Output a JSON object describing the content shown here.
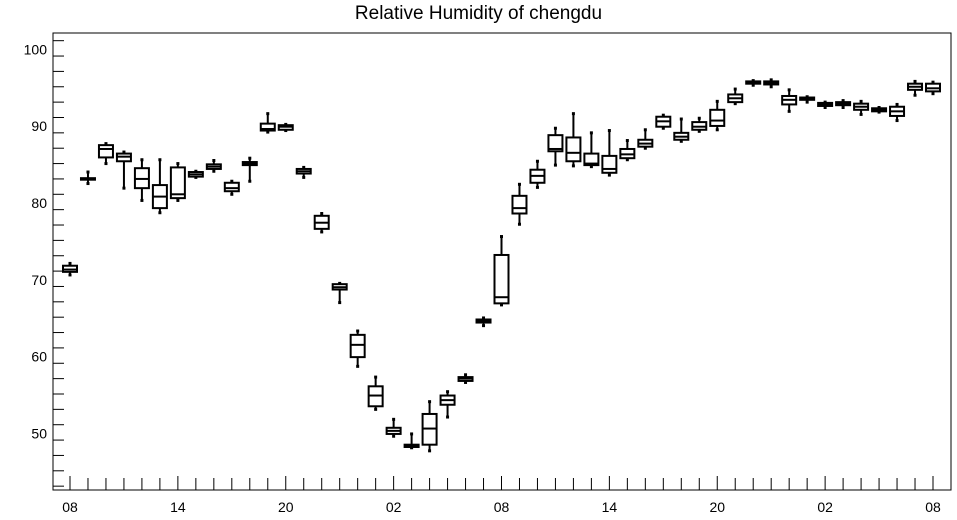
{
  "chart_data": {
    "type": "box",
    "title": "Relative Humidity of chengdu",
    "xlabel": "",
    "ylabel": "",
    "ylim": [
      42.5,
      102
    ],
    "y_ticks": [
      50,
      60,
      70,
      80,
      90,
      100
    ],
    "x_tick_labels": [
      "08",
      "14",
      "20",
      "02",
      "08",
      "14",
      "20",
      "02",
      "08"
    ],
    "x_time_hours": [
      0,
      6,
      12,
      18,
      24,
      30,
      36,
      42,
      48
    ],
    "grid": false,
    "boxes": [
      {
        "t": 0,
        "min": 70.5,
        "q1": 70.9,
        "median": 71.2,
        "q3": 71.7,
        "max": 72.0
      },
      {
        "t": 1,
        "min": 82.4,
        "q1": 82.9,
        "median": 83.0,
        "q3": 83.1,
        "max": 83.9
      },
      {
        "t": 2,
        "min": 85.0,
        "q1": 85.8,
        "median": 86.9,
        "q3": 87.4,
        "max": 87.6
      },
      {
        "t": 3,
        "min": 81.8,
        "q1": 85.3,
        "median": 85.9,
        "q3": 86.3,
        "max": 86.5
      },
      {
        "t": 4,
        "min": 80.2,
        "q1": 81.8,
        "median": 83.0,
        "q3": 84.4,
        "max": 85.5
      },
      {
        "t": 5,
        "min": 78.6,
        "q1": 79.2,
        "median": 80.7,
        "q3": 82.2,
        "max": 85.5
      },
      {
        "t": 6,
        "min": 80.2,
        "q1": 80.5,
        "median": 81.0,
        "q3": 84.5,
        "max": 85.0
      },
      {
        "t": 7,
        "min": 83.2,
        "q1": 83.3,
        "median": 83.6,
        "q3": 83.9,
        "max": 84.0
      },
      {
        "t": 8,
        "min": 84.0,
        "q1": 84.3,
        "median": 84.6,
        "q3": 84.9,
        "max": 85.4
      },
      {
        "t": 9,
        "min": 81.0,
        "q1": 81.4,
        "median": 81.8,
        "q3": 82.5,
        "max": 82.7
      },
      {
        "t": 10,
        "min": 82.7,
        "q1": 84.8,
        "median": 85.0,
        "q3": 85.2,
        "max": 85.7
      },
      {
        "t": 11,
        "min": 89.1,
        "q1": 89.3,
        "median": 89.5,
        "q3": 90.2,
        "max": 91.5
      },
      {
        "t": 12,
        "min": 89.3,
        "q1": 89.4,
        "median": 89.8,
        "q3": 90.0,
        "max": 90.1
      },
      {
        "t": 13,
        "min": 83.2,
        "q1": 83.7,
        "median": 84.0,
        "q3": 84.3,
        "max": 84.5
      },
      {
        "t": 14,
        "min": 76.1,
        "q1": 76.5,
        "median": 77.3,
        "q3": 78.2,
        "max": 78.5
      },
      {
        "t": 15,
        "min": 66.9,
        "q1": 68.6,
        "median": 68.9,
        "q3": 69.3,
        "max": 69.4
      },
      {
        "t": 16,
        "min": 58.6,
        "q1": 59.8,
        "median": 61.4,
        "q3": 62.7,
        "max": 63.2
      },
      {
        "t": 17,
        "min": 53.0,
        "q1": 53.4,
        "median": 54.8,
        "q3": 56.0,
        "max": 57.2
      },
      {
        "t": 18,
        "min": 49.5,
        "q1": 49.8,
        "median": 50.2,
        "q3": 50.6,
        "max": 51.7
      },
      {
        "t": 19,
        "min": 48.0,
        "q1": 48.1,
        "median": 48.2,
        "q3": 48.4,
        "max": 49.8
      },
      {
        "t": 20,
        "min": 47.6,
        "q1": 48.4,
        "median": 50.5,
        "q3": 52.4,
        "max": 54.0
      },
      {
        "t": 21,
        "min": 52.0,
        "q1": 53.6,
        "median": 54.2,
        "q3": 54.8,
        "max": 55.3
      },
      {
        "t": 22,
        "min": 56.5,
        "q1": 56.7,
        "median": 57.0,
        "q3": 57.2,
        "max": 57.5
      },
      {
        "t": 23,
        "min": 63.9,
        "q1": 64.3,
        "median": 64.5,
        "q3": 64.7,
        "max": 64.9
      },
      {
        "t": 24,
        "min": 66.6,
        "q1": 66.8,
        "median": 67.6,
        "q3": 73.1,
        "max": 75.5
      },
      {
        "t": 25,
        "min": 77.1,
        "q1": 78.5,
        "median": 79.2,
        "q3": 80.8,
        "max": 82.3
      },
      {
        "t": 26,
        "min": 81.9,
        "q1": 82.5,
        "median": 83.4,
        "q3": 84.2,
        "max": 85.3
      },
      {
        "t": 27,
        "min": 84.8,
        "q1": 86.6,
        "median": 86.9,
        "q3": 88.7,
        "max": 89.6
      },
      {
        "t": 28,
        "min": 84.7,
        "q1": 85.3,
        "median": 86.4,
        "q3": 88.4,
        "max": 91.5
      },
      {
        "t": 29,
        "min": 84.6,
        "q1": 84.8,
        "median": 85.0,
        "q3": 86.3,
        "max": 89.0
      },
      {
        "t": 30,
        "min": 83.5,
        "q1": 83.8,
        "median": 84.3,
        "q3": 86.0,
        "max": 89.3
      },
      {
        "t": 31,
        "min": 85.5,
        "q1": 85.7,
        "median": 86.2,
        "q3": 86.9,
        "max": 88.0
      },
      {
        "t": 32,
        "min": 87.0,
        "q1": 87.2,
        "median": 87.6,
        "q3": 88.1,
        "max": 89.4
      },
      {
        "t": 33,
        "min": 89.6,
        "q1": 89.8,
        "median": 90.5,
        "q3": 91.1,
        "max": 91.3
      },
      {
        "t": 34,
        "min": 87.9,
        "q1": 88.1,
        "median": 88.5,
        "q3": 89.0,
        "max": 90.8
      },
      {
        "t": 35,
        "min": 89.2,
        "q1": 89.4,
        "median": 89.8,
        "q3": 90.4,
        "max": 90.9
      },
      {
        "t": 36,
        "min": 89.4,
        "q1": 89.9,
        "median": 90.6,
        "q3": 92.0,
        "max": 93.1
      },
      {
        "t": 37,
        "min": 92.8,
        "q1": 93.0,
        "median": 93.5,
        "q3": 94.0,
        "max": 94.7
      },
      {
        "t": 38,
        "min": 95.2,
        "q1": 95.4,
        "median": 95.6,
        "q3": 95.7,
        "max": 95.8
      },
      {
        "t": 39,
        "min": 95.0,
        "q1": 95.3,
        "median": 95.5,
        "q3": 95.7,
        "max": 95.9
      },
      {
        "t": 40,
        "min": 91.8,
        "q1": 92.7,
        "median": 93.3,
        "q3": 93.8,
        "max": 94.6
      },
      {
        "t": 41,
        "min": 93.0,
        "q1": 93.3,
        "median": 93.5,
        "q3": 93.6,
        "max": 93.7
      },
      {
        "t": 42,
        "min": 92.3,
        "q1": 92.5,
        "median": 92.7,
        "q3": 92.9,
        "max": 93.0
      },
      {
        "t": 43,
        "min": 92.3,
        "q1": 92.6,
        "median": 92.8,
        "q3": 93.0,
        "max": 93.2
      },
      {
        "t": 44,
        "min": 91.4,
        "q1": 92.0,
        "median": 92.4,
        "q3": 92.8,
        "max": 93.1
      },
      {
        "t": 45,
        "min": 91.7,
        "q1": 91.8,
        "median": 92.0,
        "q3": 92.2,
        "max": 92.3
      },
      {
        "t": 46,
        "min": 90.6,
        "q1": 91.2,
        "median": 91.8,
        "q3": 92.4,
        "max": 92.7
      },
      {
        "t": 47,
        "min": 93.9,
        "q1": 94.6,
        "median": 95.0,
        "q3": 95.4,
        "max": 95.7
      },
      {
        "t": 48,
        "min": 94.1,
        "q1": 94.4,
        "median": 94.8,
        "q3": 95.4,
        "max": 95.6
      }
    ]
  }
}
